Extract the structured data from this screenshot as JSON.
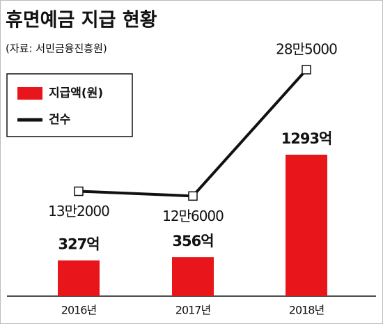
{
  "chart_data": {
    "type": "bar",
    "title": "휴면예금 지급 현황",
    "subtitle": "(자료: 서민금융진흥원)",
    "categories": [
      "2016년",
      "2017년",
      "2018년"
    ],
    "series": [
      {
        "name": "지급액(원)",
        "type": "bar",
        "color": "#e8161b",
        "values": [
          327,
          356,
          1293
        ],
        "value_labels": [
          "327억",
          "356억",
          "1293억"
        ]
      },
      {
        "name": "건수",
        "type": "line",
        "color": "#111111",
        "values": [
          132000,
          126000,
          285000
        ],
        "value_labels": [
          "13만2000",
          "12만6000",
          "28만5000"
        ]
      }
    ]
  }
}
